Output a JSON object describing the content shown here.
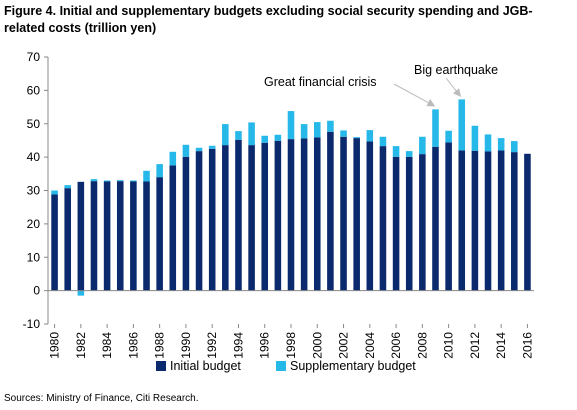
{
  "figure": {
    "title": "Figure 4. Initial and supplementary budgets excluding social security spending and JGB-related costs (trillion yen)",
    "source": "Sources: Ministry of Finance, Citi Research."
  },
  "colors": {
    "initial": "#0b2a6e",
    "supplementary": "#26b8e8",
    "axis": "#888888",
    "annotation_arrow": "#bbbbbb"
  },
  "chart_data": {
    "type": "bar",
    "stacked": true,
    "title": "Figure 4. Initial and supplementary budgets excluding social security spending and JGB-related costs (trillion yen)",
    "x": [
      1980,
      1981,
      1982,
      1983,
      1984,
      1985,
      1986,
      1987,
      1988,
      1989,
      1990,
      1991,
      1992,
      1993,
      1994,
      1995,
      1996,
      1997,
      1998,
      1999,
      2000,
      2001,
      2002,
      2003,
      2004,
      2005,
      2006,
      2007,
      2008,
      2009,
      2010,
      2011,
      2012,
      2013,
      2014,
      2015,
      2016
    ],
    "x_tick_labels": [
      "1980",
      "1982",
      "1984",
      "1986",
      "1988",
      "1990",
      "1992",
      "1994",
      "1996",
      "1998",
      "2000",
      "2002",
      "2004",
      "2006",
      "2008",
      "2010",
      "2012",
      "2014",
      "2016"
    ],
    "series": [
      {
        "name": "Initial budget",
        "values": [
          28.8,
          30.7,
          32.6,
          32.8,
          32.7,
          32.8,
          32.7,
          32.7,
          34.0,
          37.5,
          40.1,
          41.8,
          42.5,
          43.6,
          45.2,
          43.6,
          44.3,
          44.9,
          45.4,
          45.6,
          45.9,
          47.6,
          46.1,
          45.7,
          44.7,
          43.3,
          40.1,
          40.1,
          40.9,
          43.1,
          44.4,
          42.0,
          41.9,
          41.7,
          42.0,
          41.5,
          41.0
        ]
      },
      {
        "name": "Supplementary budget",
        "values": [
          1.2,
          0.9,
          -1.5,
          0.6,
          0.3,
          0.3,
          0.3,
          3.2,
          3.9,
          4.1,
          3.6,
          1.0,
          0.9,
          6.3,
          2.6,
          6.8,
          2.1,
          1.8,
          8.4,
          4.3,
          4.6,
          3.3,
          1.9,
          0.3,
          3.4,
          2.8,
          3.2,
          1.7,
          5.2,
          11.2,
          3.5,
          15.3,
          7.5,
          5.1,
          3.7,
          3.3,
          0.0
        ]
      }
    ],
    "legend": [
      "Initial budget",
      "Supplementary budget"
    ],
    "legend_position": "bottom",
    "ylim": [
      -10,
      70
    ],
    "yticks": [
      -10,
      0,
      10,
      20,
      30,
      40,
      50,
      60,
      70
    ],
    "grid": false,
    "annotations": [
      {
        "text": "Great financial crisis",
        "year": 2009
      },
      {
        "text": "Big earthquake",
        "year": 2011
      }
    ],
    "xlabel": "",
    "ylabel": ""
  }
}
